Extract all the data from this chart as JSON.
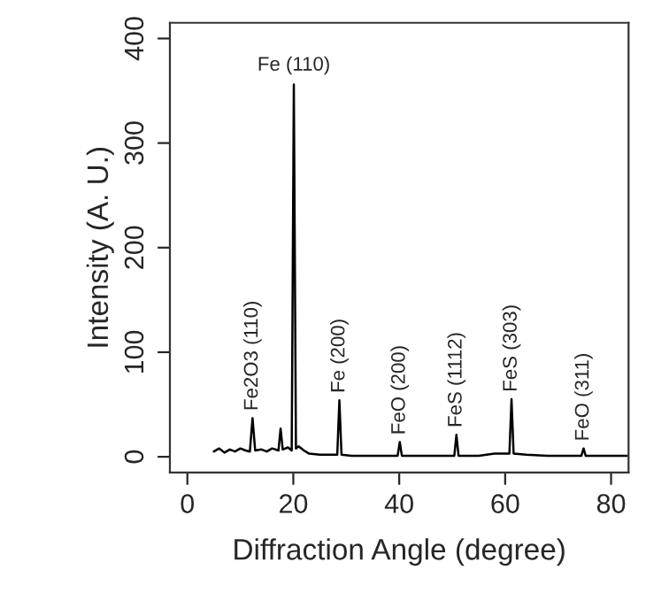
{
  "chart_data": {
    "type": "line",
    "xlabel": "Diffraction Angle (degree)",
    "ylabel": "Intensity (A. U.)",
    "x": [
      5,
      6,
      7,
      8,
      9,
      10,
      11,
      11.8,
      12.3,
      12.8,
      14,
      15,
      16,
      17.2,
      17.6,
      18,
      19,
      19.7,
      20.1,
      20.5,
      21,
      22,
      23,
      25,
      28.3,
      28.7,
      29.1,
      31,
      34,
      37,
      39.7,
      40.1,
      40.5,
      44,
      47,
      50.4,
      50.8,
      51.2,
      55,
      58,
      60.8,
      61.2,
      61.6,
      64,
      68,
      72,
      74.4,
      74.8,
      75.2,
      78,
      83
    ],
    "series": [
      {
        "color": "#000000",
        "values": [
          5,
          8,
          4,
          7,
          5,
          8,
          6,
          5,
          37,
          6,
          7,
          5,
          8,
          6,
          27,
          7,
          9,
          6,
          356,
          8,
          10,
          6,
          3,
          2,
          2,
          54,
          2,
          1,
          1,
          1,
          1,
          14,
          1,
          1,
          1,
          1,
          21,
          1,
          1,
          3,
          3,
          55,
          3,
          2,
          1,
          1,
          1,
          8,
          1,
          1,
          1
        ]
      }
    ],
    "xlim": [
      -3.3,
      83.3
    ],
    "ylim": [
      -15,
      415
    ],
    "xticks": [
      0,
      20,
      40,
      60,
      80
    ],
    "yticks": [
      0,
      100,
      200,
      300,
      400
    ],
    "grid": false,
    "legend": false,
    "marker": "none",
    "line_style": "solid",
    "annotations": [
      {
        "text": "Fe (110)",
        "x": 20.1,
        "y": 356
      },
      {
        "text": "Fe2O3 (110)",
        "x": 12.3,
        "y": 37
      },
      {
        "text": "Fe (200)",
        "x": 28.7,
        "y": 54
      },
      {
        "text": "FeO (200)",
        "x": 40.1,
        "y": 14
      },
      {
        "text": "FeS (1112)",
        "x": 50.8,
        "y": 21
      },
      {
        "text": "FeS (303)",
        "x": 61.2,
        "y": 55
      },
      {
        "text": "FeO (311)",
        "x": 74.8,
        "y": 8
      }
    ]
  }
}
